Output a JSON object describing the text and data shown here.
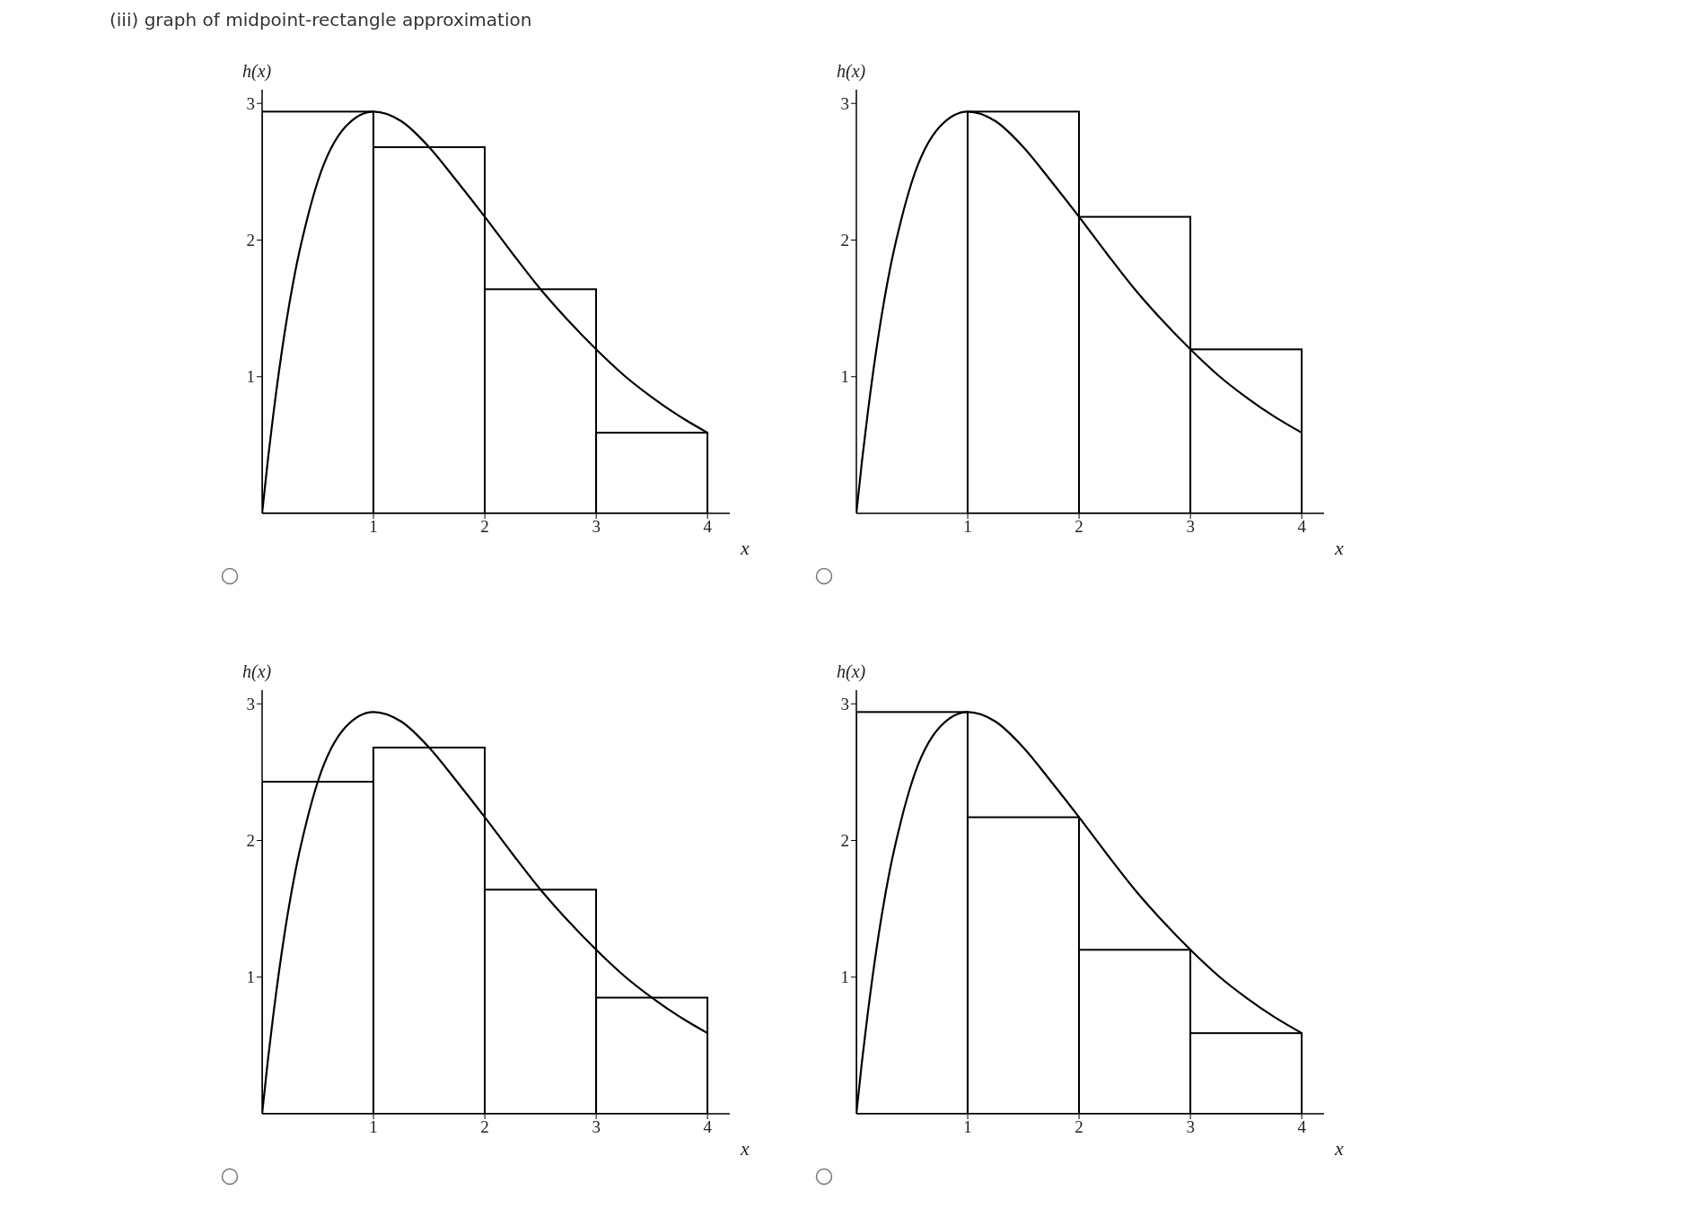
{
  "chart_data": [
    {
      "type": "bar",
      "title": "(iii) graph of midpoint-rectangle approximation",
      "xlabel": "x",
      "ylabel": "h(x)",
      "x": [
        0.5,
        1.5,
        2.5,
        3.5
      ],
      "xlim": [
        0,
        4.2
      ],
      "ylim": [
        0,
        3.1
      ],
      "xticks": [
        1,
        2,
        3,
        4
      ],
      "yticks": [
        1,
        2,
        3
      ],
      "marker": "none",
      "series": [
        {
          "color": "#000000",
          "values": [
            2.94,
            2.68,
            1.64,
            0.59
          ]
        },
        {
          "type": "line",
          "color": "#000000",
          "x": [
            0,
            0.05,
            0.1,
            0.2,
            0.3,
            0.4,
            0.5,
            0.75,
            1,
            1.25,
            1.5,
            1.75,
            2,
            2.25,
            2.5,
            2.75,
            3,
            3.25,
            3.5,
            3.75,
            4
          ],
          "values": [
            0,
            0.38,
            0.72,
            1.31,
            1.78,
            2.14,
            2.43,
            2.83,
            2.94,
            2.87,
            2.68,
            2.43,
            2.17,
            1.9,
            1.64,
            1.41,
            1.2,
            1.01,
            0.85,
            0.71,
            0.59
          ]
        }
      ]
    },
    {
      "type": "bar",
      "xlabel": "x",
      "ylabel": "h(x)",
      "x": [
        1.5,
        2.5,
        3.5
      ],
      "xlim": [
        0,
        4.2
      ],
      "ylim": [
        0,
        3.1
      ],
      "xticks": [
        1,
        2,
        3,
        4
      ],
      "yticks": [
        1,
        2,
        3
      ],
      "marker": "none",
      "series": [
        {
          "color": "#000000",
          "values": [
            2.94,
            2.17,
            1.2
          ]
        },
        {
          "type": "line",
          "color": "#000000",
          "x": [
            0,
            0.05,
            0.1,
            0.2,
            0.3,
            0.4,
            0.5,
            0.75,
            1,
            1.25,
            1.5,
            1.75,
            2,
            2.25,
            2.5,
            2.75,
            3,
            3.25,
            3.5,
            3.75,
            4
          ],
          "values": [
            0,
            0.38,
            0.72,
            1.31,
            1.78,
            2.14,
            2.43,
            2.83,
            2.94,
            2.87,
            2.68,
            2.43,
            2.17,
            1.9,
            1.64,
            1.41,
            1.2,
            1.01,
            0.85,
            0.71,
            0.59
          ]
        }
      ]
    },
    {
      "type": "bar",
      "xlabel": "x",
      "ylabel": "h(x)",
      "x": [
        0.5,
        1.5,
        2.5,
        3.5
      ],
      "xlim": [
        0,
        4.2
      ],
      "ylim": [
        0,
        3.1
      ],
      "xticks": [
        1,
        2,
        3,
        4
      ],
      "yticks": [
        1,
        2,
        3
      ],
      "marker": "none",
      "series": [
        {
          "color": "#000000",
          "values": [
            2.43,
            2.68,
            1.64,
            0.85
          ]
        },
        {
          "type": "line",
          "color": "#000000",
          "x": [
            0,
            0.05,
            0.1,
            0.2,
            0.3,
            0.4,
            0.5,
            0.75,
            1,
            1.25,
            1.5,
            1.75,
            2,
            2.25,
            2.5,
            2.75,
            3,
            3.25,
            3.5,
            3.75,
            4
          ],
          "values": [
            0,
            0.38,
            0.72,
            1.31,
            1.78,
            2.14,
            2.43,
            2.83,
            2.94,
            2.87,
            2.68,
            2.43,
            2.17,
            1.9,
            1.64,
            1.41,
            1.2,
            1.01,
            0.85,
            0.71,
            0.59
          ]
        }
      ]
    },
    {
      "type": "bar",
      "xlabel": "x",
      "ylabel": "h(x)",
      "x": [
        0.5,
        1.5,
        2.5,
        3.5
      ],
      "xlim": [
        0,
        4.2
      ],
      "ylim": [
        0,
        3.1
      ],
      "xticks": [
        1,
        2,
        3,
        4
      ],
      "yticks": [
        1,
        2,
        3
      ],
      "marker": "none",
      "series": [
        {
          "color": "#000000",
          "values": [
            2.94,
            2.17,
            1.2,
            0.59
          ]
        },
        {
          "type": "line",
          "color": "#000000",
          "x": [
            0,
            0.05,
            0.1,
            0.2,
            0.3,
            0.4,
            0.5,
            0.75,
            1,
            1.25,
            1.5,
            1.75,
            2,
            2.25,
            2.5,
            2.75,
            3,
            3.25,
            3.5,
            3.75,
            4
          ],
          "values": [
            0,
            0.38,
            0.72,
            1.31,
            1.78,
            2.14,
            2.43,
            2.83,
            2.94,
            2.87,
            2.68,
            2.43,
            2.17,
            1.9,
            1.64,
            1.41,
            1.2,
            1.01,
            0.85,
            0.71,
            0.59
          ]
        }
      ]
    }
  ]
}
